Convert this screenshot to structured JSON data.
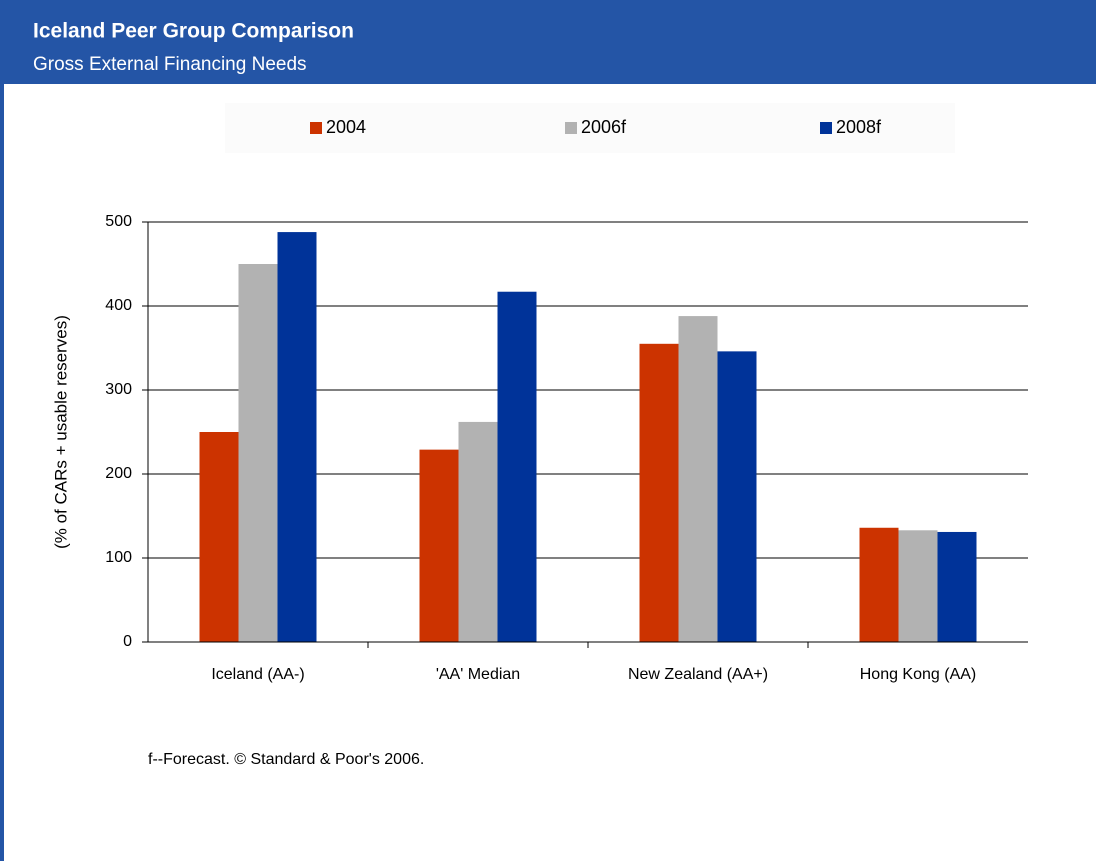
{
  "chart_data": {
    "type": "bar",
    "title": "Iceland Peer Group Comparison",
    "subtitle": "Gross External Financing Needs",
    "y_label": "(% of CARs + usable reserves)",
    "footnote": "f--Forecast. © Standard & Poor's 2006.",
    "categories": [
      "Iceland (AA-)",
      "'AA' Median",
      "New Zealand (AA+)",
      "Hong Kong (AA)"
    ],
    "series": [
      {
        "name": "2004",
        "color": "#cc3300",
        "values": [
          250,
          229,
          355,
          136
        ]
      },
      {
        "name": "2006f",
        "color": "#b2b2b2",
        "values": [
          450,
          262,
          388,
          133
        ]
      },
      {
        "name": "2008f",
        "color": "#003399",
        "values": [
          488,
          417,
          346,
          131
        ]
      }
    ],
    "ylim": [
      0,
      500
    ],
    "yticks": [
      0,
      100,
      200,
      300,
      400,
      500
    ],
    "grid": true,
    "legend": "top"
  }
}
